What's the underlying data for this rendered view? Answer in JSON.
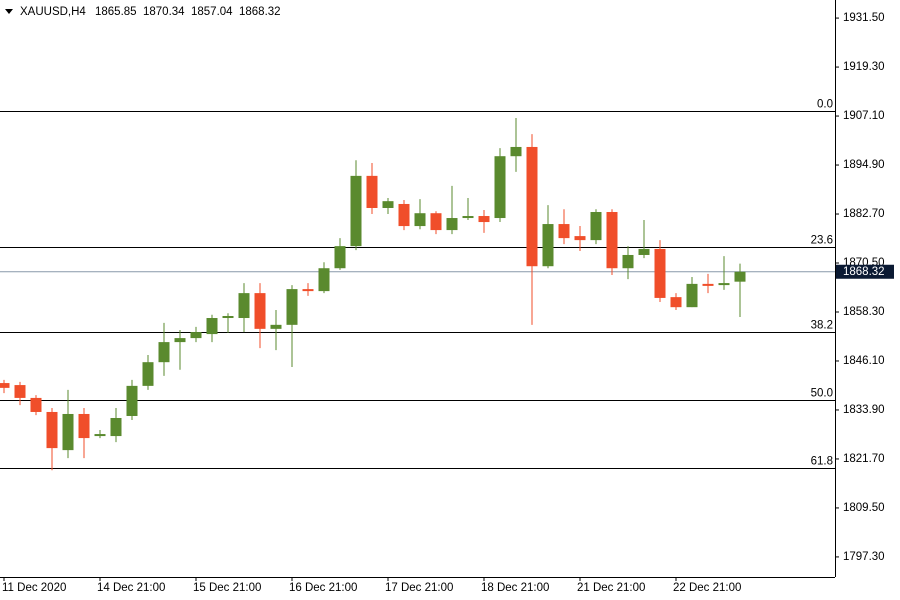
{
  "chart_data": {
    "type": "candlestick",
    "header": {
      "symbol": "XAUUSD,H4",
      "ohlc": [
        1865.85,
        1870.34,
        1857.04,
        1868.32
      ]
    },
    "categories": [
      "11 Dec 2020",
      null,
      null,
      null,
      null,
      null,
      "14 Dec 21:00",
      null,
      null,
      null,
      null,
      null,
      "15 Dec 21:00",
      null,
      null,
      null,
      null,
      null,
      "16 Dec 21:00",
      null,
      null,
      null,
      null,
      null,
      "17 Dec 21:00",
      null,
      null,
      null,
      null,
      null,
      "18 Dec 21:00",
      null,
      null,
      null,
      null,
      null,
      "21 Dec 21:00",
      null,
      null,
      null,
      null,
      null,
      "22 Dec 21:00",
      null,
      null,
      null,
      null
    ],
    "open": [
      1840.6,
      1840.1,
      1836.9,
      1833.4,
      1823.9,
      1832.9,
      1827.4,
      1827.4,
      1832.4,
      1839.9,
      1845.8,
      1850.8,
      1851.8,
      1852.8,
      1856.8,
      1856.8,
      1863.0,
      1854.1,
      1855.1,
      1864.0,
      1863.5,
      1869.2,
      1874.7,
      1892.2,
      1884.2,
      1885.2,
      1879.7,
      1882.9,
      1878.7,
      1881.7,
      1882.2,
      1881.7,
      1897.1,
      1899.4,
      1869.7,
      1880.2,
      1877.2,
      1876.2,
      1883.2,
      1869.2,
      1872.5,
      1874.0,
      1862.0,
      1859.5,
      1865.3,
      1865.0,
      1865.85
    ],
    "high": [
      1841.4,
      1840.9,
      1837.6,
      1834.4,
      1838.9,
      1834.4,
      1828.9,
      1834.4,
      1841.4,
      1847.6,
      1855.6,
      1853.8,
      1854.6,
      1857.6,
      1858.0,
      1865.5,
      1865.5,
      1858.8,
      1865.0,
      1865.5,
      1870.7,
      1876.7,
      1896.1,
      1895.4,
      1886.7,
      1886.2,
      1886.4,
      1883.4,
      1889.7,
      1886.7,
      1883.7,
      1899.1,
      1906.6,
      1902.6,
      1884.9,
      1883.9,
      1879.7,
      1883.9,
      1883.9,
      1874.7,
      1881.2,
      1876.2,
      1863.0,
      1867.0,
      1867.8,
      1872.2,
      1870.34
    ],
    "low": [
      1838.1,
      1835.1,
      1832.6,
      1818.9,
      1821.9,
      1821.9,
      1826.9,
      1825.9,
      1831.4,
      1838.9,
      1842.4,
      1843.9,
      1850.8,
      1850.8,
      1853.1,
      1853.3,
      1849.3,
      1848.8,
      1844.6,
      1862.3,
      1863.0,
      1868.8,
      1873.7,
      1882.7,
      1882.7,
      1878.7,
      1878.9,
      1877.7,
      1877.7,
      1881.2,
      1878.0,
      1880.7,
      1893.2,
      1855.1,
      1869.2,
      1875.2,
      1873.5,
      1875.2,
      1867.5,
      1866.5,
      1871.7,
      1860.8,
      1858.8,
      1859.5,
      1863.0,
      1863.8,
      1857.04
    ],
    "close": [
      1839.4,
      1836.9,
      1833.4,
      1824.4,
      1832.9,
      1826.9,
      1827.9,
      1831.9,
      1839.9,
      1845.8,
      1850.8,
      1851.8,
      1853.3,
      1856.8,
      1857.3,
      1863.0,
      1854.1,
      1855.1,
      1864.0,
      1863.5,
      1869.2,
      1874.7,
      1892.2,
      1884.2,
      1885.9,
      1879.7,
      1882.9,
      1878.7,
      1881.7,
      1882.2,
      1880.7,
      1897.1,
      1899.4,
      1869.7,
      1880.2,
      1876.7,
      1876.2,
      1883.2,
      1869.2,
      1872.5,
      1874.0,
      1861.8,
      1859.5,
      1865.3,
      1864.8,
      1865.5,
      1868.32
    ],
    "up_color": "#5a8a2e",
    "down_color": "#f04e2a",
    "fib_levels": [
      {
        "label": "0.0",
        "price": 1908.3
      },
      {
        "label": "23.6",
        "price": 1874.4
      },
      {
        "label": "38.2",
        "price": 1853.3
      },
      {
        "label": "50.0",
        "price": 1836.4
      },
      {
        "label": "61.8",
        "price": 1819.4
      }
    ],
    "current_price": 1868.32,
    "ylim": [
      1792.3,
      1936.0
    ],
    "yticks": [
      {
        "value": 1931.5,
        "label": "1931.50"
      },
      {
        "value": 1919.3,
        "label": "1919.30"
      },
      {
        "value": 1907.1,
        "label": "1907.10"
      },
      {
        "value": 1894.9,
        "label": "1894.90"
      },
      {
        "value": 1882.7,
        "label": "1882.70"
      },
      {
        "value": 1870.5,
        "label": "1870.50"
      },
      {
        "value": 1858.3,
        "label": "1858.30"
      },
      {
        "value": 1846.1,
        "label": "1846.10"
      },
      {
        "value": 1833.9,
        "label": "1833.90"
      },
      {
        "value": 1821.7,
        "label": "1821.70"
      },
      {
        "value": 1809.5,
        "label": "1809.50"
      },
      {
        "value": 1797.3,
        "label": "1797.30"
      }
    ]
  }
}
